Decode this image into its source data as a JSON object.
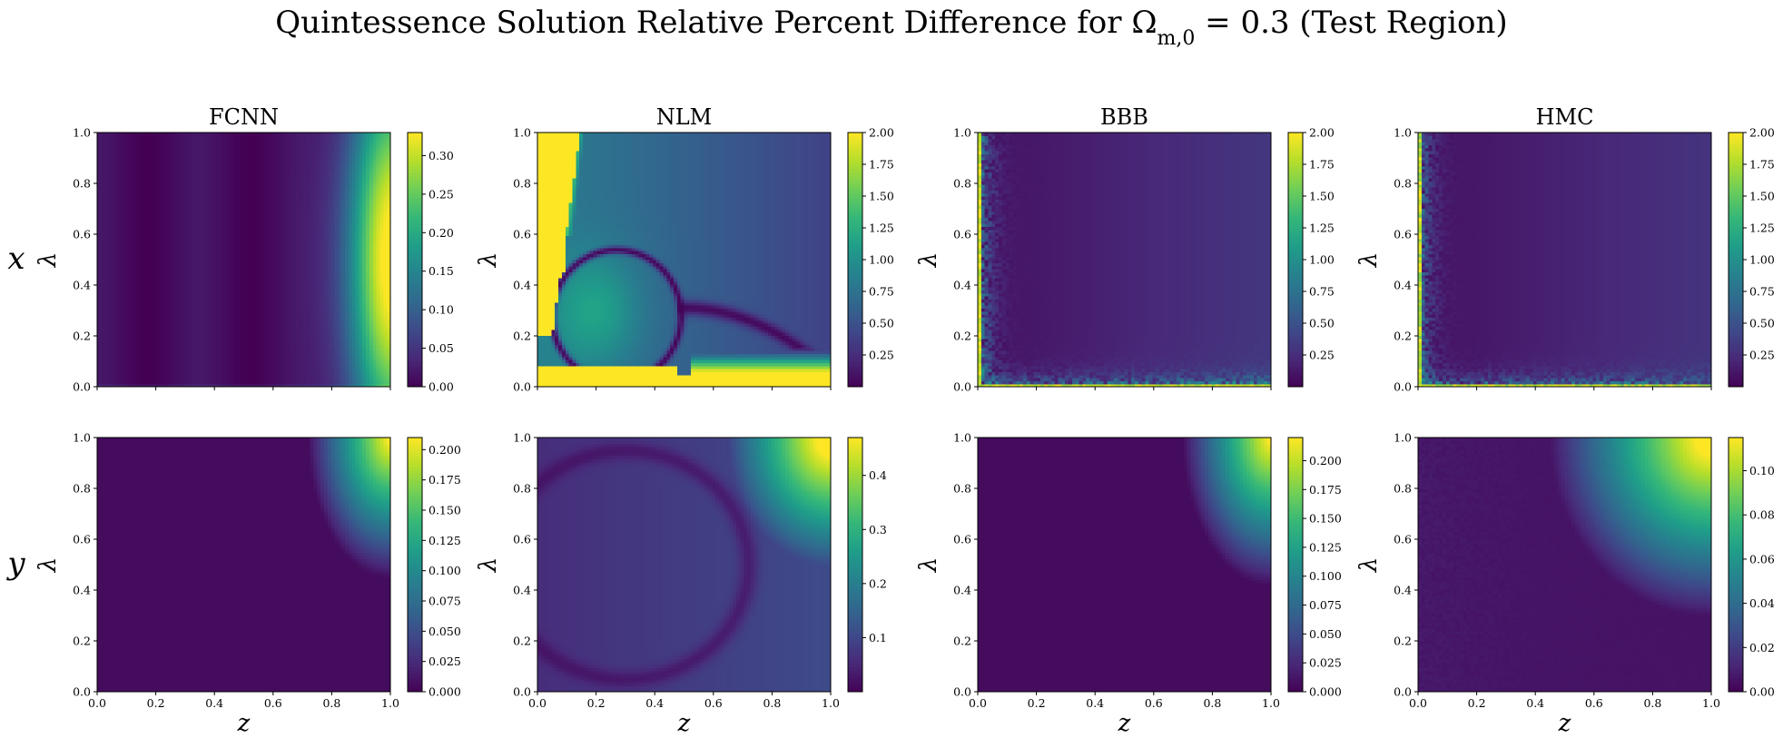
{
  "figure": {
    "title": "Quintessence Solution Relative Percent Difference for Ω_{m,0} = 0.3 (Test Region)",
    "title_main": "Quintessence Solution Relative Percent Difference for Ω",
    "title_sub": "m,0",
    "title_tail": " = 0.3 (Test Region)",
    "row_labels": [
      "x",
      "y"
    ],
    "colormap": "viridis",
    "viridis_stops": [
      "#440154",
      "#482878",
      "#3e4989",
      "#31688e",
      "#26828e",
      "#1f9e89",
      "#35b779",
      "#6ece58",
      "#b5de2b",
      "#fde725"
    ]
  },
  "chart_data": [
    {
      "type": "heatmap",
      "row": "x",
      "title": "FCNN",
      "xlabel": "",
      "ylabel": "λ",
      "xlim": [
        0,
        1
      ],
      "ylim": [
        0,
        1
      ],
      "xticks": [
        "0.0",
        "0.2",
        "0.4",
        "0.6",
        "0.8",
        "1.0"
      ],
      "yticks": [
        "0.0",
        "0.2",
        "0.4",
        "0.6",
        "0.8",
        "1.0"
      ],
      "colorbar": {
        "min": 0.0,
        "max": 0.33,
        "ticks": [
          0.0,
          0.05,
          0.1,
          0.15,
          0.2,
          0.25,
          0.3
        ],
        "tick_labels": [
          "0.00",
          "0.05",
          "0.10",
          "0.15",
          "0.20",
          "0.25",
          "0.30"
        ]
      },
      "pattern": "x_fcnn"
    },
    {
      "type": "heatmap",
      "row": "x",
      "title": "NLM",
      "xlabel": "",
      "ylabel": "λ",
      "xlim": [
        0,
        1
      ],
      "ylim": [
        0,
        1
      ],
      "xticks": [
        "0.0",
        "0.2",
        "0.4",
        "0.6",
        "0.8",
        "1.0"
      ],
      "yticks": [
        "0.0",
        "0.2",
        "0.4",
        "0.6",
        "0.8",
        "1.0"
      ],
      "colorbar": {
        "min": 0.0,
        "max": 2.0,
        "ticks": [
          0.25,
          0.5,
          0.75,
          1.0,
          1.25,
          1.5,
          1.75,
          2.0
        ],
        "tick_labels": [
          "0.25",
          "0.50",
          "0.75",
          "1.00",
          "1.25",
          "1.50",
          "1.75",
          "2.00"
        ]
      },
      "pattern": "x_nlm"
    },
    {
      "type": "heatmap",
      "row": "x",
      "title": "BBB",
      "xlabel": "",
      "ylabel": "λ",
      "xlim": [
        0,
        1
      ],
      "ylim": [
        0,
        1
      ],
      "xticks": [
        "0.0",
        "0.2",
        "0.4",
        "0.6",
        "0.8",
        "1.0"
      ],
      "yticks": [
        "0.0",
        "0.2",
        "0.4",
        "0.6",
        "0.8",
        "1.0"
      ],
      "colorbar": {
        "min": 0.0,
        "max": 2.0,
        "ticks": [
          0.25,
          0.5,
          0.75,
          1.0,
          1.25,
          1.5,
          1.75,
          2.0
        ],
        "tick_labels": [
          "0.25",
          "0.50",
          "0.75",
          "1.00",
          "1.25",
          "1.50",
          "1.75",
          "2.00"
        ]
      },
      "pattern": "x_bbb"
    },
    {
      "type": "heatmap",
      "row": "x",
      "title": "HMC",
      "xlabel": "",
      "ylabel": "λ",
      "xlim": [
        0,
        1
      ],
      "ylim": [
        0,
        1
      ],
      "xticks": [
        "0.0",
        "0.2",
        "0.4",
        "0.6",
        "0.8",
        "1.0"
      ],
      "yticks": [
        "0.0",
        "0.2",
        "0.4",
        "0.6",
        "0.8",
        "1.0"
      ],
      "colorbar": {
        "min": 0.0,
        "max": 2.0,
        "ticks": [
          0.25,
          0.5,
          0.75,
          1.0,
          1.25,
          1.5,
          1.75,
          2.0
        ],
        "tick_labels": [
          "0.25",
          "0.50",
          "0.75",
          "1.00",
          "1.25",
          "1.50",
          "1.75",
          "2.00"
        ]
      },
      "pattern": "x_hmc"
    },
    {
      "type": "heatmap",
      "row": "y",
      "title": "",
      "xlabel": "z",
      "ylabel": "λ",
      "xlim": [
        0,
        1
      ],
      "ylim": [
        0,
        1
      ],
      "xticks": [
        "0.0",
        "0.2",
        "0.4",
        "0.6",
        "0.8",
        "1.0"
      ],
      "yticks": [
        "0.0",
        "0.2",
        "0.4",
        "0.6",
        "0.8",
        "1.0"
      ],
      "colorbar": {
        "min": 0.0,
        "max": 0.21,
        "ticks": [
          0.0,
          0.025,
          0.05,
          0.075,
          0.1,
          0.125,
          0.15,
          0.175,
          0.2
        ],
        "tick_labels": [
          "0.000",
          "0.025",
          "0.050",
          "0.075",
          "0.100",
          "0.125",
          "0.150",
          "0.175",
          "0.200"
        ]
      },
      "pattern": "y_fcnn"
    },
    {
      "type": "heatmap",
      "row": "y",
      "title": "",
      "xlabel": "z",
      "ylabel": "λ",
      "xlim": [
        0,
        1
      ],
      "ylim": [
        0,
        1
      ],
      "xticks": [
        "0.0",
        "0.2",
        "0.4",
        "0.6",
        "0.8",
        "1.0"
      ],
      "yticks": [
        "0.0",
        "0.2",
        "0.4",
        "0.6",
        "0.8",
        "1.0"
      ],
      "colorbar": {
        "min": 0.0,
        "max": 0.47,
        "ticks": [
          0.1,
          0.2,
          0.3,
          0.4
        ],
        "tick_labels": [
          "0.1",
          "0.2",
          "0.3",
          "0.4"
        ]
      },
      "pattern": "y_nlm"
    },
    {
      "type": "heatmap",
      "row": "y",
      "title": "",
      "xlabel": "z",
      "ylabel": "λ",
      "xlim": [
        0,
        1
      ],
      "ylim": [
        0,
        1
      ],
      "xticks": [
        "0.0",
        "0.2",
        "0.4",
        "0.6",
        "0.8",
        "1.0"
      ],
      "yticks": [
        "0.0",
        "0.2",
        "0.4",
        "0.6",
        "0.8",
        "1.0"
      ],
      "colorbar": {
        "min": 0.0,
        "max": 0.22,
        "ticks": [
          0.0,
          0.025,
          0.05,
          0.075,
          0.1,
          0.125,
          0.15,
          0.175,
          0.2
        ],
        "tick_labels": [
          "0.000",
          "0.025",
          "0.050",
          "0.075",
          "0.100",
          "0.125",
          "0.150",
          "0.175",
          "0.200"
        ]
      },
      "pattern": "y_bbb"
    },
    {
      "type": "heatmap",
      "row": "y",
      "title": "",
      "xlabel": "z",
      "ylabel": "λ",
      "xlim": [
        0,
        1
      ],
      "ylim": [
        0,
        1
      ],
      "xticks": [
        "0.0",
        "0.2",
        "0.4",
        "0.6",
        "0.8",
        "1.0"
      ],
      "yticks": [
        "0.0",
        "0.2",
        "0.4",
        "0.6",
        "0.8",
        "1.0"
      ],
      "colorbar": {
        "min": 0.0,
        "max": 0.115,
        "ticks": [
          0.0,
          0.02,
          0.04,
          0.06,
          0.08,
          0.1
        ],
        "tick_labels": [
          "0.00",
          "0.02",
          "0.04",
          "0.06",
          "0.08",
          "0.10"
        ]
      },
      "pattern": "y_hmc"
    }
  ]
}
